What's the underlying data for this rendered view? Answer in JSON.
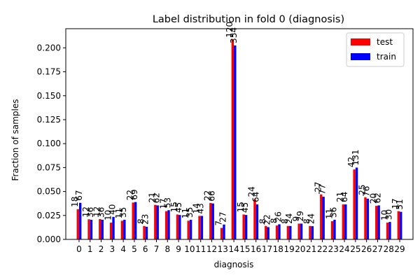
{
  "chart_data": {
    "type": "bar",
    "title": "Label distribution in fold 0 (diagnosis)",
    "xlabel": "diagnosis",
    "ylabel": "Fraction of samples",
    "ylim": [
      0,
      0.22
    ],
    "yticks": [
      "0.000",
      "0.025",
      "0.050",
      "0.075",
      "0.100",
      "0.125",
      "0.150",
      "0.175",
      "0.200"
    ],
    "categories": [
      "0",
      "1",
      "2",
      "3",
      "4",
      "5",
      "6",
      "7",
      "8",
      "9",
      "10",
      "11",
      "12",
      "13",
      "14",
      "15",
      "16",
      "17",
      "18",
      "19",
      "20",
      "21",
      "22",
      "23",
      "24",
      "25",
      "26",
      "27",
      "28",
      "29"
    ],
    "legend_position": "top-right",
    "grid": false,
    "series": [
      {
        "name": "test",
        "color": "#ff0000",
        "values": [
          0.0315,
          0.021,
          0.0212,
          0.0175,
          0.0195,
          0.0385,
          0.014,
          0.036,
          0.0295,
          0.026,
          0.0195,
          0.0245,
          0.038,
          0.012,
          0.2085,
          0.026,
          0.042,
          0.014,
          0.0145,
          0.014,
          0.0165,
          0.014,
          0.047,
          0.019,
          0.0365,
          0.073,
          0.044,
          0.035,
          0.0175,
          0.0295
        ],
        "counts": [
          "18",
          "12",
          "12",
          "10",
          "11",
          "22",
          "8",
          "21",
          "17",
          "15",
          "11",
          "14",
          "22",
          "7",
          "120",
          "15",
          "24",
          "8",
          "8",
          "8",
          "9",
          "8",
          "27",
          "11",
          "21",
          "42",
          "25",
          "20",
          "10",
          "17"
        ]
      },
      {
        "name": "train",
        "color": "#0000ff",
        "values": [
          0.0382,
          0.0205,
          0.0205,
          0.0235,
          0.0205,
          0.039,
          0.0132,
          0.0355,
          0.0305,
          0.0255,
          0.0205,
          0.0245,
          0.0375,
          0.0155,
          0.2025,
          0.0255,
          0.0365,
          0.0128,
          0.0158,
          0.014,
          0.0165,
          0.0138,
          0.0445,
          0.0205,
          0.0365,
          0.075,
          0.0425,
          0.0355,
          0.0182,
          0.0288
        ],
        "counts": [
          "67",
          "36",
          "36",
          "40",
          "35",
          "69",
          "23",
          "62",
          "53",
          "45",
          "35",
          "43",
          "66",
          "27",
          "354",
          "45",
          "64",
          "22",
          "26",
          "24",
          "29",
          "24",
          "77",
          "36",
          "64",
          "131",
          "76",
          "62",
          "30",
          "51"
        ]
      }
    ]
  }
}
